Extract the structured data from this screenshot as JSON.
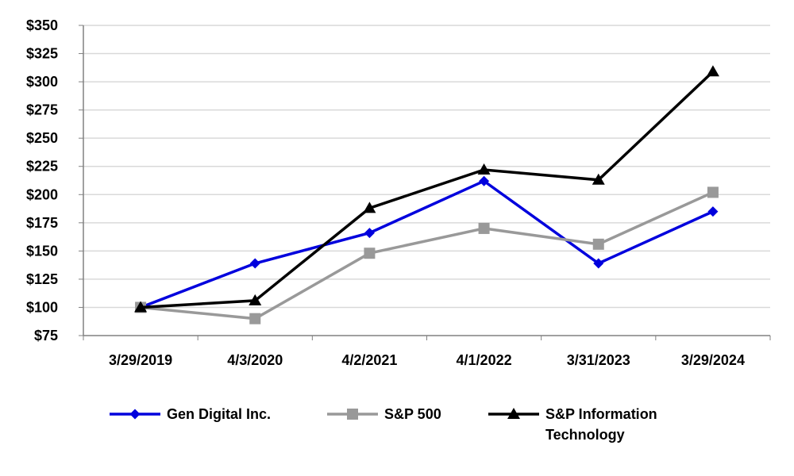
{
  "chart_data": {
    "type": "line",
    "title": "",
    "xlabel": "",
    "ylabel": "",
    "categories": [
      "3/29/2019",
      "4/3/2020",
      "4/2/2021",
      "4/1/2022",
      "3/31/2023",
      "3/29/2024"
    ],
    "ylim": [
      75,
      350
    ],
    "yticks": [
      75,
      100,
      125,
      150,
      175,
      200,
      225,
      250,
      275,
      300,
      325,
      350
    ],
    "ytick_labels": [
      "$75",
      "$100",
      "$125",
      "$150",
      "$175",
      "$200",
      "$225",
      "$250",
      "$275",
      "$300",
      "$325",
      "$350"
    ],
    "grid": true,
    "legend_position": "bottom",
    "series": [
      {
        "name": "Gen Digital Inc.",
        "legend_lines": [
          "Gen Digital Inc."
        ],
        "color": "#0000dd",
        "marker": "diamond",
        "values": [
          100,
          139,
          166,
          212,
          139,
          185
        ]
      },
      {
        "name": "S&P 500",
        "legend_lines": [
          "S&P 500"
        ],
        "color": "#999999",
        "marker": "square",
        "values": [
          100,
          90,
          148,
          170,
          156,
          202
        ]
      },
      {
        "name": "S&P Information Technology",
        "legend_lines": [
          "S&P Information",
          "Technology"
        ],
        "color": "#000000",
        "marker": "triangle",
        "values": [
          100,
          106,
          188,
          222,
          213,
          309
        ]
      }
    ]
  }
}
